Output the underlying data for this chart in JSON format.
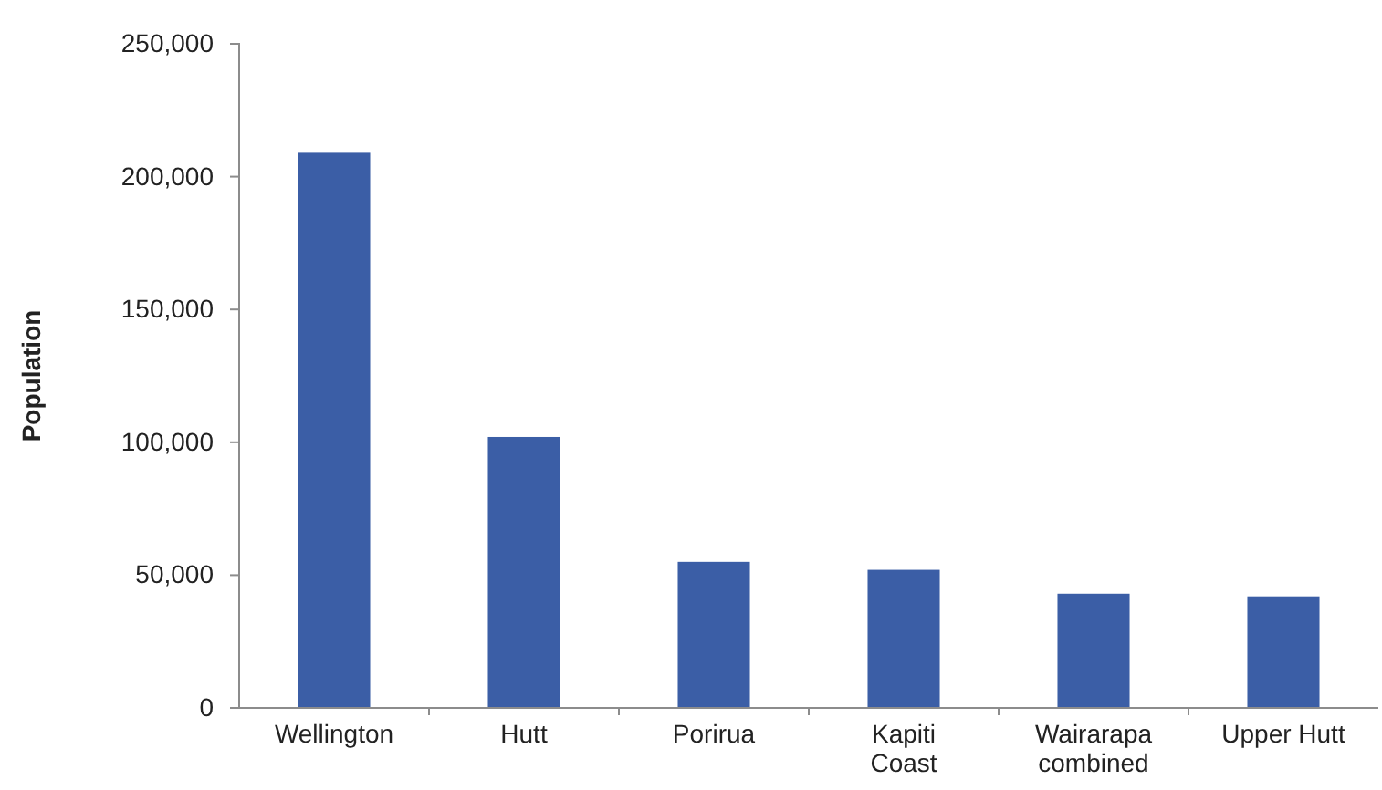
{
  "chart_data": {
    "type": "bar",
    "ylabel": "Population",
    "categories": [
      "Wellington",
      "Hutt",
      "Porirua",
      "Kapiti Coast",
      "Wairarapa combined",
      "Upper Hutt"
    ],
    "values": [
      209000,
      102000,
      55000,
      52000,
      43000,
      42000
    ],
    "color": "#3b5ea6",
    "ylim": [
      0,
      250000
    ],
    "yticks": [
      {
        "value": 0,
        "label": "0"
      },
      {
        "value": 50000,
        "label": "50,000"
      },
      {
        "value": 100000,
        "label": "100,000"
      },
      {
        "value": 150000,
        "label": "150,000"
      },
      {
        "value": 200000,
        "label": "200,000"
      },
      {
        "value": 250000,
        "label": "250,000"
      }
    ],
    "grid": false,
    "legend": false
  }
}
